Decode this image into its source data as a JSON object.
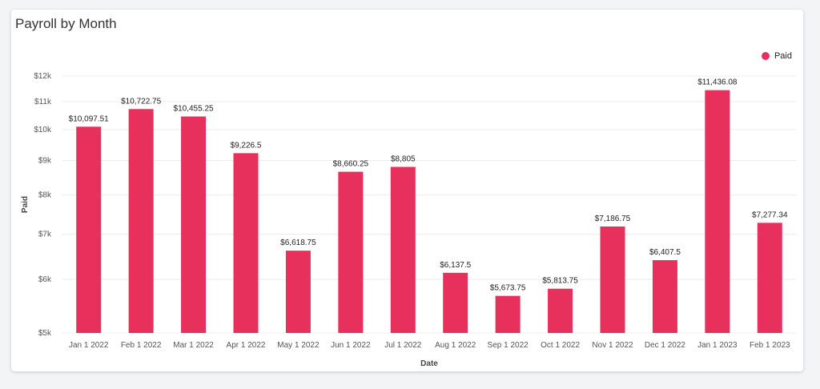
{
  "title": "Payroll by Month",
  "legend": {
    "label": "Paid",
    "color": "#e8305c"
  },
  "chart_data": {
    "type": "bar",
    "title": "Payroll by Month",
    "xlabel": "Date",
    "ylabel": "Paid",
    "yscale": "log",
    "ylim": [
      5000,
      12000
    ],
    "yticks": [
      5000,
      6000,
      7000,
      8000,
      9000,
      10000,
      11000,
      12000
    ],
    "ytick_labels": [
      "$5k",
      "$6k",
      "$7k",
      "$8k",
      "$9k",
      "$10k",
      "$11k",
      "$12k"
    ],
    "grid": true,
    "legend_position": "top-right",
    "categories": [
      "Jan 1 2022",
      "Feb 1 2022",
      "Mar 1 2022",
      "Apr 1 2022",
      "May 1 2022",
      "Jun 1 2022",
      "Jul 1 2022",
      "Aug 1 2022",
      "Sep 1 2022",
      "Oct 1 2022",
      "Nov 1 2022",
      "Dec 1 2022",
      "Jan 1 2023",
      "Feb 1 2023"
    ],
    "series": [
      {
        "name": "Paid",
        "color": "#e8305c",
        "values": [
          10097.51,
          10722.75,
          10455.25,
          9226.5,
          6618.75,
          8660.25,
          8805,
          6137.5,
          5673.75,
          5813.75,
          7186.75,
          6407.5,
          11436.08,
          7277.34
        ],
        "labels": [
          "$10,097.51",
          "$10,722.75",
          "$10,455.25",
          "$9,226.5",
          "$6,618.75",
          "$8,660.25",
          "$8,805",
          "$6,137.5",
          "$5,673.75",
          "$5,813.75",
          "$7,186.75",
          "$6,407.5",
          "$11,436.08",
          "$7,277.34"
        ]
      }
    ]
  }
}
